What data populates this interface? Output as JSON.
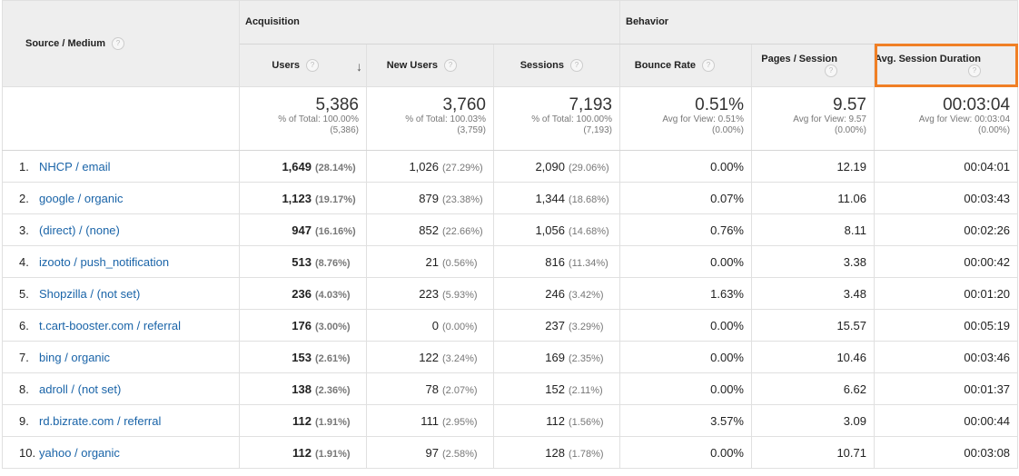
{
  "headers": {
    "source_medium": "Source / Medium",
    "acquisition": "Acquisition",
    "behavior": "Behavior",
    "users": "Users",
    "new_users": "New Users",
    "sessions": "Sessions",
    "bounce_rate": "Bounce Rate",
    "pages_session": "Pages / Session",
    "avg_duration": "Avg. Session Duration",
    "help_glyph": "?",
    "sort_glyph": "↓"
  },
  "totals": {
    "users": {
      "big": "5,386",
      "line1": "% of Total: 100.00%",
      "line2": "(5,386)"
    },
    "new_users": {
      "big": "3,760",
      "line1": "% of Total: 100.03%",
      "line2": "(3,759)"
    },
    "sessions": {
      "big": "7,193",
      "line1": "% of Total: 100.00%",
      "line2": "(7,193)"
    },
    "bounce_rate": {
      "big": "0.51%",
      "line1": "Avg for View: 0.51%",
      "line2": "(0.00%)"
    },
    "pages_session": {
      "big": "9.57",
      "line1": "Avg for View: 9.57",
      "line2": "(0.00%)"
    },
    "avg_duration": {
      "big": "00:03:04",
      "line1": "Avg for View: 00:03:04",
      "line2": "(0.00%)"
    }
  },
  "rows": [
    {
      "num": "1.",
      "source": "NHCP / email",
      "users": "1,649",
      "users_pct": "(28.14%)",
      "new_users": "1,026",
      "new_users_pct": "(27.29%)",
      "sessions": "2,090",
      "sessions_pct": "(29.06%)",
      "bounce": "0.00%",
      "pages": "12.19",
      "duration": "00:04:01"
    },
    {
      "num": "2.",
      "source": "google / organic",
      "users": "1,123",
      "users_pct": "(19.17%)",
      "new_users": "879",
      "new_users_pct": "(23.38%)",
      "sessions": "1,344",
      "sessions_pct": "(18.68%)",
      "bounce": "0.07%",
      "pages": "11.06",
      "duration": "00:03:43"
    },
    {
      "num": "3.",
      "source": "(direct) / (none)",
      "users": "947",
      "users_pct": "(16.16%)",
      "new_users": "852",
      "new_users_pct": "(22.66%)",
      "sessions": "1,056",
      "sessions_pct": "(14.68%)",
      "bounce": "0.76%",
      "pages": "8.11",
      "duration": "00:02:26"
    },
    {
      "num": "4.",
      "source": "izooto / push_notification",
      "users": "513",
      "users_pct": "(8.76%)",
      "new_users": "21",
      "new_users_pct": "(0.56%)",
      "sessions": "816",
      "sessions_pct": "(11.34%)",
      "bounce": "0.00%",
      "pages": "3.38",
      "duration": "00:00:42"
    },
    {
      "num": "5.",
      "source": "Shopzilla / (not set)",
      "users": "236",
      "users_pct": "(4.03%)",
      "new_users": "223",
      "new_users_pct": "(5.93%)",
      "sessions": "246",
      "sessions_pct": "(3.42%)",
      "bounce": "1.63%",
      "pages": "3.48",
      "duration": "00:01:20"
    },
    {
      "num": "6.",
      "source": "t.cart-booster.com / referral",
      "users": "176",
      "users_pct": "(3.00%)",
      "new_users": "0",
      "new_users_pct": "(0.00%)",
      "sessions": "237",
      "sessions_pct": "(3.29%)",
      "bounce": "0.00%",
      "pages": "15.57",
      "duration": "00:05:19"
    },
    {
      "num": "7.",
      "source": "bing / organic",
      "users": "153",
      "users_pct": "(2.61%)",
      "new_users": "122",
      "new_users_pct": "(3.24%)",
      "sessions": "169",
      "sessions_pct": "(2.35%)",
      "bounce": "0.00%",
      "pages": "10.46",
      "duration": "00:03:46"
    },
    {
      "num": "8.",
      "source": "adroll / (not set)",
      "users": "138",
      "users_pct": "(2.36%)",
      "new_users": "78",
      "new_users_pct": "(2.07%)",
      "sessions": "152",
      "sessions_pct": "(2.11%)",
      "bounce": "0.00%",
      "pages": "6.62",
      "duration": "00:01:37"
    },
    {
      "num": "9.",
      "source": "rd.bizrate.com / referral",
      "users": "112",
      "users_pct": "(1.91%)",
      "new_users": "111",
      "new_users_pct": "(2.95%)",
      "sessions": "112",
      "sessions_pct": "(1.56%)",
      "bounce": "3.57%",
      "pages": "3.09",
      "duration": "00:00:44"
    },
    {
      "num": "10.",
      "source": "yahoo / organic",
      "users": "112",
      "users_pct": "(1.91%)",
      "new_users": "97",
      "new_users_pct": "(2.58%)",
      "sessions": "128",
      "sessions_pct": "(1.78%)",
      "bounce": "0.00%",
      "pages": "10.71",
      "duration": "00:03:08"
    }
  ],
  "colors": {
    "link": "#1a64a8",
    "highlight_box": "#f07f25",
    "header_bg": "#eeeeee"
  }
}
